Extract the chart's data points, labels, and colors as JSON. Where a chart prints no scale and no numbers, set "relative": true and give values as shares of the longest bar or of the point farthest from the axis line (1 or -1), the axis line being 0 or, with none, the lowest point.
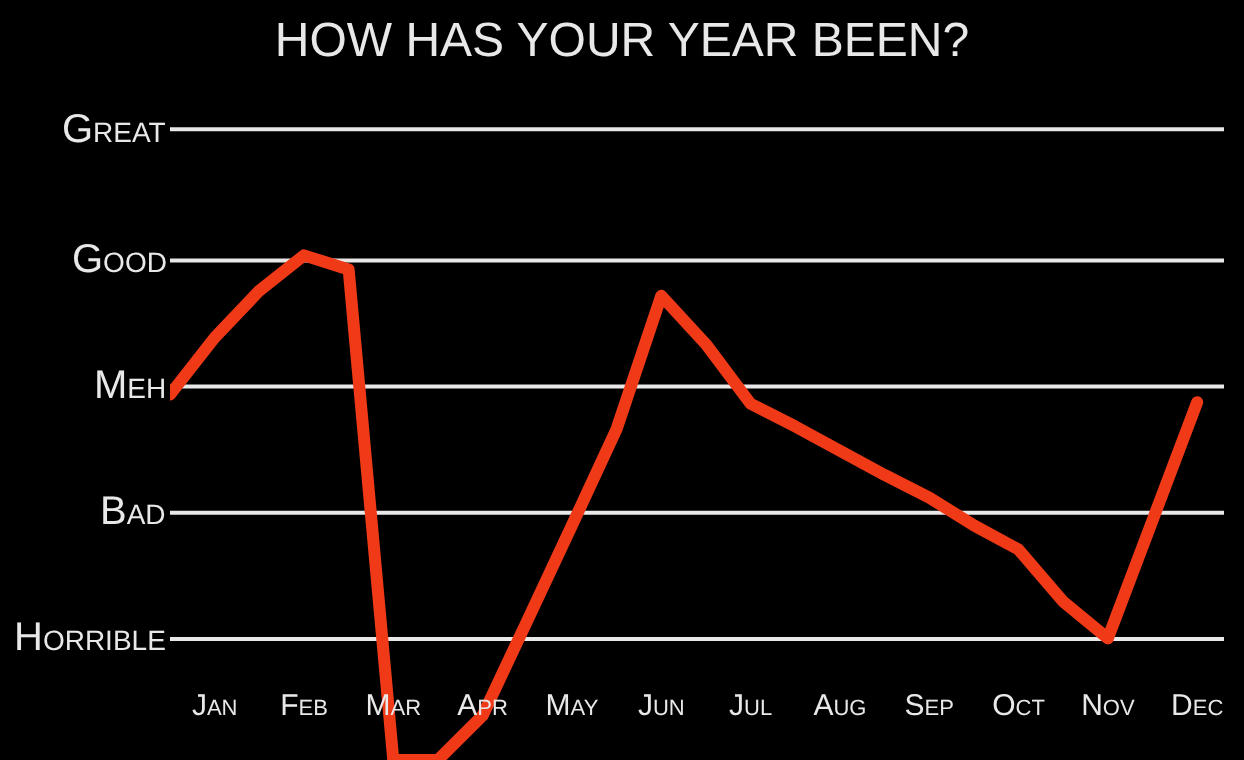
{
  "chart_data": {
    "type": "line",
    "title": "HOW HAS YOUR YEAR BEEN?",
    "relative": true,
    "categories": [
      null,
      "Jan",
      null,
      "Feb",
      null,
      "Mar",
      null,
      "Apr",
      null,
      "May",
      null,
      "Jun",
      null,
      "Jul",
      null,
      "Aug",
      null,
      "Sep",
      null,
      "Oct",
      null,
      "Nov",
      null,
      "Dec"
    ],
    "series": [
      {
        "color": "#f03a17",
        "values": [
          0.724,
          0.837,
          0.93,
          1.0,
          0.972,
          0,
          0,
          0.088,
          0.276,
          0.465,
          0.656,
          0.92,
          0.824,
          0.706,
          0.661,
          0.613,
          0.565,
          0.52,
          0.465,
          0.417,
          0.314,
          0.241,
          0.475,
          0.709
        ]
      }
    ],
    "ref_lines": [
      {
        "axis": "y",
        "value": 0.24,
        "label": "Horrible"
      },
      {
        "axis": "y",
        "value": 0.49,
        "label": "Bad"
      },
      {
        "axis": "y",
        "value": 0.74,
        "label": "Meh"
      },
      {
        "axis": "y",
        "value": 0.99,
        "label": "Good"
      },
      {
        "axis": "y",
        "value": 1.25,
        "label": "Great"
      }
    ],
    "tick_labels": "x",
    "legend": false,
    "marker": "none",
    "line_style": "solid"
  }
}
